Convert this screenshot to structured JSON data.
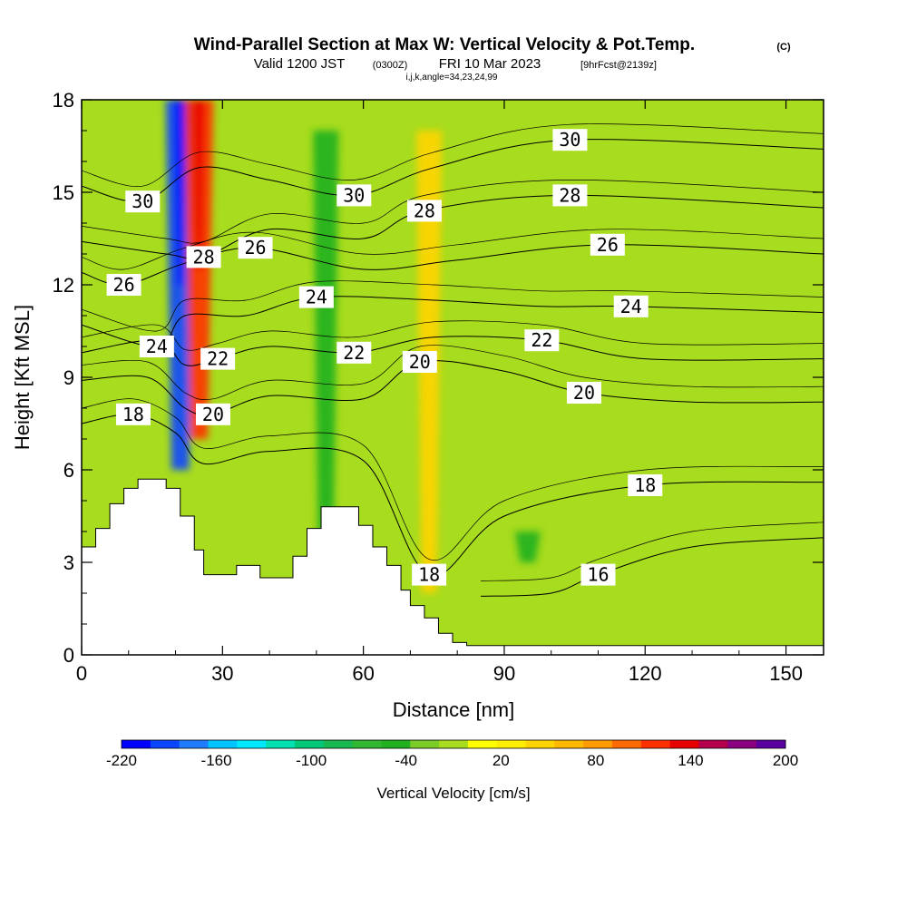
{
  "header": {
    "title": "Wind-Parallel Section at Max W: Vertical Velocity & Pot.Temp.",
    "copyright": "(C)",
    "valid_prefix": "Valid 1200 JST",
    "valid_utc": "(0300Z)",
    "valid_date": "FRI 10 Mar 2023",
    "forecast": "[9hrFcst@2139z]",
    "indices": "i,j,k,angle=34,23,24,99"
  },
  "chart_data": {
    "type": "heatmap",
    "title": "Wind-Parallel Section at Max W: Vertical Velocity & Pot.Temp.",
    "xlabel": "Distance [nm]",
    "ylabel": "Height [Kft MSL]",
    "xlim": [
      0,
      158
    ],
    "ylim": [
      0,
      18
    ],
    "x_ticks": [
      0,
      30,
      60,
      90,
      120,
      150
    ],
    "x_tick_labels": [
      "0",
      "30",
      "60",
      "90",
      "120",
      "150"
    ],
    "y_ticks": [
      0,
      3,
      6,
      9,
      12,
      15,
      18
    ],
    "y_tick_labels": [
      "0",
      "3",
      "6",
      "9",
      "12",
      "15",
      "18"
    ],
    "colorbar": {
      "label": "Vertical Velocity [cm/s]",
      "min": -220,
      "max": 200,
      "step": 20,
      "tick_values": [
        -220,
        -160,
        -100,
        -40,
        20,
        80,
        140,
        200
      ],
      "tick_labels": [
        "-220",
        "-160",
        "-100",
        "-40",
        "20",
        "80",
        "140",
        "200"
      ],
      "colors": [
        "#0000ff",
        "#0a46ff",
        "#1e7dff",
        "#00c4ff",
        "#00e8ff",
        "#00e0b0",
        "#00c878",
        "#18b850",
        "#30b830",
        "#20b020",
        "#7ccc28",
        "#a8dc1e",
        "#ffff00",
        "#ffee00",
        "#ffd400",
        "#ffb800",
        "#ff9a00",
        "#ff6a00",
        "#ff3000",
        "#e80000",
        "#b4004c",
        "#8a0080",
        "#5a00a0"
      ]
    },
    "terrain": [
      [
        0,
        3.5
      ],
      [
        3,
        4.1
      ],
      [
        6,
        4.9
      ],
      [
        9,
        5.4
      ],
      [
        12,
        5.7
      ],
      [
        15,
        5.7
      ],
      [
        18,
        5.4
      ],
      [
        21,
        4.5
      ],
      [
        24,
        3.4
      ],
      [
        26,
        2.6
      ],
      [
        30,
        2.6
      ],
      [
        33,
        2.9
      ],
      [
        38,
        2.5
      ],
      [
        42,
        2.5
      ],
      [
        45,
        3.2
      ],
      [
        48,
        4.1
      ],
      [
        51,
        4.8
      ],
      [
        55,
        4.8
      ],
      [
        59,
        4.2
      ],
      [
        62,
        3.5
      ],
      [
        65,
        2.9
      ],
      [
        68,
        2.1
      ],
      [
        70,
        1.6
      ],
      [
        73,
        1.2
      ],
      [
        76,
        0.7
      ],
      [
        79,
        0.4
      ],
      [
        82,
        0.3
      ],
      [
        84,
        0.3
      ],
      [
        158,
        0.3
      ]
    ],
    "velocity_features": [
      {
        "x": 21,
        "y_bottom": 6,
        "y_top": 18,
        "value": -200
      },
      {
        "x": 25,
        "y_bottom": 7,
        "y_top": 18,
        "value": 140
      },
      {
        "x": 52,
        "y_bottom": 3,
        "y_top": 17,
        "value": -40
      },
      {
        "x": 74,
        "y_bottom": 2,
        "y_top": 17,
        "value": 60
      },
      {
        "x": 95,
        "y_bottom": 3,
        "y_top": 4,
        "value": -40
      }
    ],
    "isentropes": [
      {
        "value": 16,
        "label_positions": [
          [
            110,
            2.6
          ]
        ],
        "points": [
          [
            85,
            1.9
          ],
          [
            100,
            2.0
          ],
          [
            110,
            2.6
          ],
          [
            130,
            3.5
          ],
          [
            158,
            3.8
          ]
        ]
      },
      {
        "value": 18,
        "label_positions": [
          [
            11,
            7.8
          ],
          [
            74,
            2.6
          ],
          [
            120,
            5.5
          ]
        ],
        "points": [
          [
            0,
            7.5
          ],
          [
            11,
            7.8
          ],
          [
            20,
            7.2
          ],
          [
            26,
            6.2
          ],
          [
            40,
            6.6
          ],
          [
            60,
            6.3
          ],
          [
            74,
            2.6
          ],
          [
            90,
            4.5
          ],
          [
            120,
            5.5
          ],
          [
            158,
            5.6
          ]
        ]
      },
      {
        "value": 20,
        "label_positions": [
          [
            28,
            7.8
          ],
          [
            72,
            9.5
          ],
          [
            107,
            8.5
          ]
        ],
        "points": [
          [
            0,
            8.9
          ],
          [
            14,
            9.0
          ],
          [
            22,
            8.0
          ],
          [
            28,
            7.8
          ],
          [
            40,
            8.4
          ],
          [
            60,
            8.3
          ],
          [
            72,
            9.5
          ],
          [
            90,
            9.2
          ],
          [
            107,
            8.5
          ],
          [
            130,
            8.2
          ],
          [
            158,
            8.2
          ]
        ]
      },
      {
        "value": 22,
        "label_positions": [
          [
            29,
            9.6
          ],
          [
            58,
            9.8
          ],
          [
            98,
            10.2
          ]
        ],
        "points": [
          [
            0,
            9.8
          ],
          [
            16,
            10.2
          ],
          [
            22,
            9.4
          ],
          [
            29,
            9.6
          ],
          [
            40,
            10.0
          ],
          [
            58,
            9.8
          ],
          [
            75,
            10.3
          ],
          [
            98,
            10.2
          ],
          [
            120,
            9.6
          ],
          [
            158,
            9.6
          ]
        ]
      },
      {
        "value": 24,
        "label_positions": [
          [
            16,
            10.0
          ],
          [
            50,
            11.6
          ],
          [
            117,
            11.3
          ]
        ],
        "points": [
          [
            0,
            10.7
          ],
          [
            16,
            10.0
          ],
          [
            22,
            11.0
          ],
          [
            35,
            11.0
          ],
          [
            50,
            11.6
          ],
          [
            75,
            11.5
          ],
          [
            98,
            11.3
          ],
          [
            117,
            11.3
          ],
          [
            158,
            11.1
          ]
        ]
      },
      {
        "value": 26,
        "label_positions": [
          [
            9,
            12.0
          ],
          [
            37,
            13.2
          ],
          [
            112,
            13.3
          ]
        ],
        "points": [
          [
            0,
            12.4
          ],
          [
            9,
            12.0
          ],
          [
            22,
            12.7
          ],
          [
            37,
            13.2
          ],
          [
            60,
            12.5
          ],
          [
            80,
            12.8
          ],
          [
            112,
            13.3
          ],
          [
            158,
            13.0
          ]
        ]
      },
      {
        "value": 28,
        "label_positions": [
          [
            26,
            12.9
          ],
          [
            73,
            14.4
          ],
          [
            104,
            14.9
          ]
        ],
        "points": [
          [
            0,
            13.4
          ],
          [
            18,
            13.0
          ],
          [
            26,
            12.9
          ],
          [
            40,
            13.8
          ],
          [
            60,
            13.5
          ],
          [
            73,
            14.4
          ],
          [
            104,
            14.9
          ],
          [
            158,
            14.5
          ]
        ]
      },
      {
        "value": 30,
        "label_positions": [
          [
            13,
            14.7
          ],
          [
            58,
            14.9
          ],
          [
            104,
            16.7
          ]
        ],
        "points": [
          [
            0,
            15.2
          ],
          [
            13,
            14.7
          ],
          [
            25,
            15.8
          ],
          [
            40,
            15.4
          ],
          [
            58,
            14.9
          ],
          [
            75,
            15.8
          ],
          [
            104,
            16.7
          ],
          [
            158,
            16.4
          ]
        ]
      }
    ]
  }
}
